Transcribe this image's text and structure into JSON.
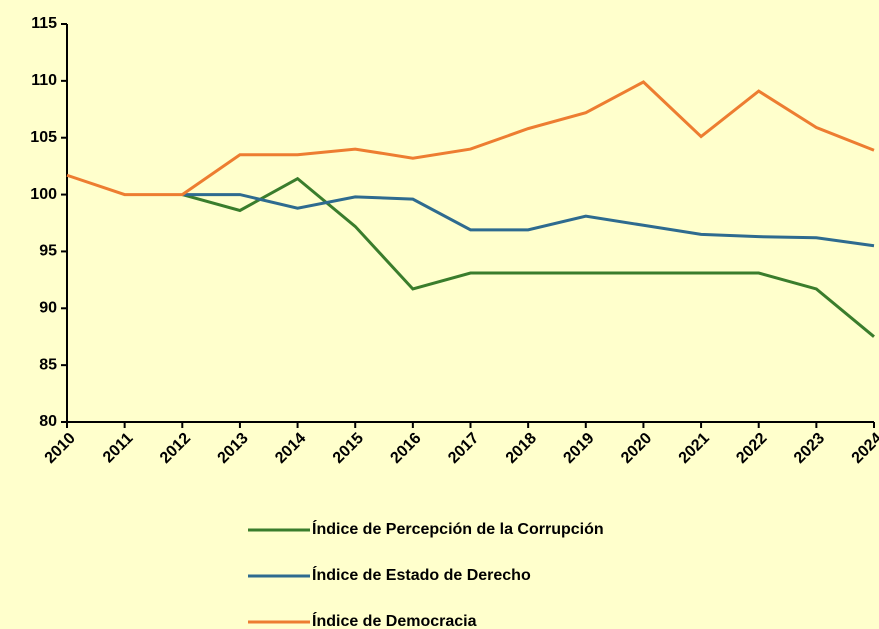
{
  "chart_data": {
    "type": "line",
    "categories": [
      "2010",
      "2011",
      "2012",
      "2013",
      "2014",
      "2015",
      "2016",
      "2017",
      "2018",
      "2019",
      "2020",
      "2021",
      "2022",
      "2023",
      "2024"
    ],
    "series": [
      {
        "name": "Índice de Percepción de la Corrupción",
        "color": "#3a7d2c",
        "values": [
          null,
          null,
          100,
          98.6,
          101.4,
          97.2,
          91.7,
          93.1,
          93.1,
          93.1,
          93.1,
          93.1,
          93.1,
          91.7,
          87.5
        ]
      },
      {
        "name": "Índice de Estado de Derecho",
        "color": "#2e6b8f",
        "values": [
          null,
          null,
          100,
          100,
          98.8,
          99.8,
          99.6,
          96.9,
          96.9,
          98.1,
          97.3,
          96.5,
          96.3,
          96.2,
          95.5
        ]
      },
      {
        "name": "Índice de Democracia",
        "color": "#ed7d31",
        "values": [
          101.7,
          100,
          100,
          103.5,
          103.5,
          104,
          103.2,
          104,
          105.8,
          107.2,
          109.9,
          105.1,
          109.1,
          105.9,
          103.9
        ]
      }
    ],
    "ylim": [
      80,
      115
    ],
    "yticks": [
      80,
      85,
      90,
      95,
      100,
      105,
      110,
      115
    ],
    "grid": false
  }
}
